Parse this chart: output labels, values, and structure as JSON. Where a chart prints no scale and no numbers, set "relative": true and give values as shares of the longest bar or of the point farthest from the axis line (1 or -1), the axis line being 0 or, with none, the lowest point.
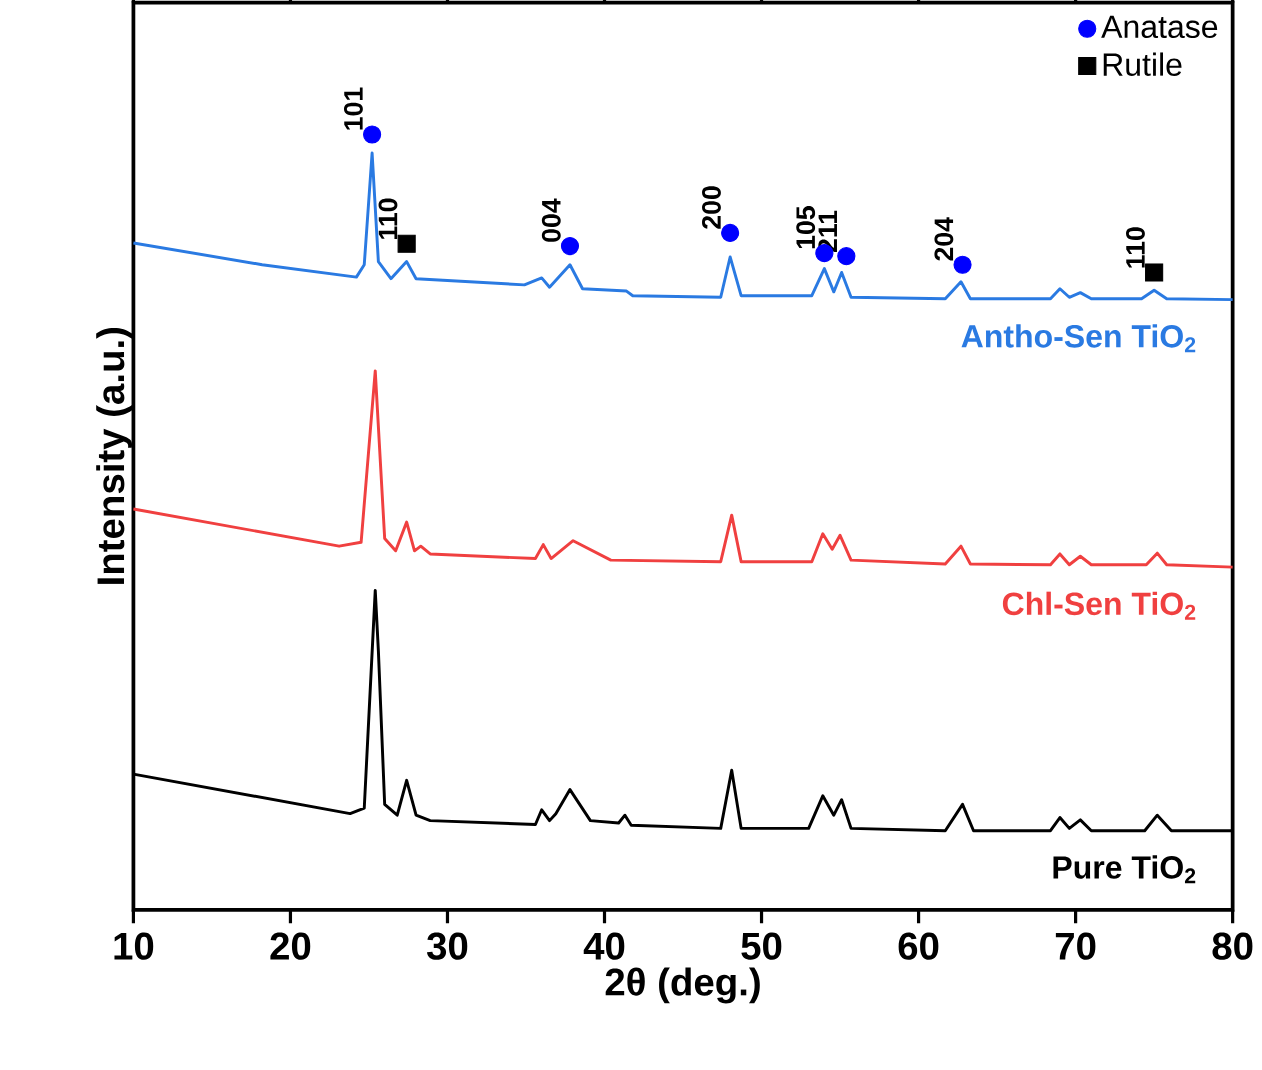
{
  "chart_data": {
    "type": "line",
    "xlabel": "2θ (deg.)",
    "ylabel": "Intensity (a.u.)",
    "relative": true,
    "xlim": [
      10,
      80
    ],
    "xticks": [
      10,
      20,
      30,
      40,
      50,
      60,
      70,
      80
    ],
    "legend": "top right",
    "series": [
      {
        "name": "Antho-Sen TiO$_{2}$",
        "color": "#2a7ae2",
        "x": [
          10,
          18.2,
          24.2,
          24.7,
          25.2,
          25.6,
          26.4,
          27.4,
          28.0,
          34.9,
          36.0,
          36.5,
          37.8,
          38.6,
          41.4,
          41.8,
          47.4,
          48.0,
          48.7,
          53.2,
          54.0,
          54.6,
          55.1,
          55.7,
          61.7,
          62.7,
          63.3,
          68.4,
          69.0,
          69.6,
          70.3,
          71.0,
          74.2,
          75.0,
          75.8,
          80
        ],
        "values": [
          0.86,
          0.832,
          0.816,
          0.832,
          0.976,
          0.836,
          0.814,
          0.836,
          0.814,
          0.806,
          0.815,
          0.803,
          0.832,
          0.801,
          0.798,
          0.792,
          0.79,
          0.842,
          0.792,
          0.792,
          0.827,
          0.797,
          0.822,
          0.79,
          0.788,
          0.81,
          0.788,
          0.788,
          0.801,
          0.79,
          0.796,
          0.788,
          0.788,
          0.799,
          0.788,
          0.787
        ]
      },
      {
        "name": "Chl-Sen TiO$_{2}$",
        "color": "#f04040",
        "x": [
          10,
          23.1,
          24.5,
          25.4,
          26.0,
          26.7,
          27.4,
          27.9,
          28.3,
          28.9,
          35.6,
          36.1,
          36.6,
          38.0,
          40.4,
          47.4,
          48.1,
          48.7,
          53.2,
          53.9,
          54.5,
          55.0,
          55.7,
          61.7,
          62.7,
          63.3,
          68.4,
          69.0,
          69.6,
          70.3,
          71.0,
          74.5,
          75.2,
          75.8,
          80
        ],
        "values": [
          0.517,
          0.469,
          0.474,
          0.695,
          0.479,
          0.463,
          0.5,
          0.463,
          0.469,
          0.459,
          0.453,
          0.471,
          0.453,
          0.476,
          0.451,
          0.449,
          0.509,
          0.449,
          0.449,
          0.485,
          0.465,
          0.483,
          0.451,
          0.446,
          0.469,
          0.446,
          0.445,
          0.459,
          0.445,
          0.456,
          0.445,
          0.445,
          0.46,
          0.445,
          0.442
        ]
      },
      {
        "name": "Pure TiO$_{2}$",
        "color": "#000000",
        "x": [
          10,
          23.8,
          24.7,
          25.4,
          25.6,
          26.0,
          26.8,
          27.4,
          28.0,
          28.9,
          35.6,
          36.0,
          36.5,
          36.9,
          37.8,
          39.1,
          40.9,
          41.3,
          41.7,
          47.4,
          48.1,
          48.7,
          53.0,
          53.9,
          54.6,
          55.1,
          55.7,
          61.7,
          62.8,
          63.5,
          68.4,
          69.0,
          69.6,
          70.3,
          71.0,
          74.4,
          75.2,
          76.1,
          80
        ],
        "values": [
          0.175,
          0.124,
          0.131,
          0.412,
          0.334,
          0.136,
          0.122,
          0.167,
          0.122,
          0.115,
          0.11,
          0.129,
          0.115,
          0.124,
          0.155,
          0.115,
          0.112,
          0.122,
          0.109,
          0.105,
          0.18,
          0.105,
          0.105,
          0.147,
          0.122,
          0.142,
          0.105,
          0.102,
          0.136,
          0.102,
          0.102,
          0.119,
          0.105,
          0.116,
          0.102,
          0.102,
          0.122,
          0.102,
          0.102
        ]
      },
      {
        "name": "Anatase",
        "type": "scatter",
        "marker": "circle",
        "color": "#0000ff",
        "x": [
          25.2,
          37.8,
          48.0,
          54.0,
          55.4,
          62.8
        ],
        "values": [
          1.0,
          0.856,
          0.873,
          0.847,
          0.843,
          0.832
        ]
      },
      {
        "name": "Rutile",
        "type": "scatter",
        "marker": "square",
        "color": "#000000",
        "x": [
          27.4,
          75.0
        ],
        "values": [
          0.859,
          0.822
        ]
      }
    ],
    "annotations": [
      {
        "text": "101",
        "x": 25.2,
        "y": 1.0
      },
      {
        "text": "110",
        "x": 27.4,
        "y": 0.859
      },
      {
        "text": "004",
        "x": 37.8,
        "y": 0.856
      },
      {
        "text": "200",
        "x": 48.0,
        "y": 0.873
      },
      {
        "text": "105",
        "x": 54.0,
        "y": 0.847
      },
      {
        "text": "211",
        "x": 55.4,
        "y": 0.843
      },
      {
        "text": "204",
        "x": 62.8,
        "y": 0.832
      },
      {
        "text": "110",
        "x": 75.0,
        "y": 0.822
      }
    ]
  }
}
